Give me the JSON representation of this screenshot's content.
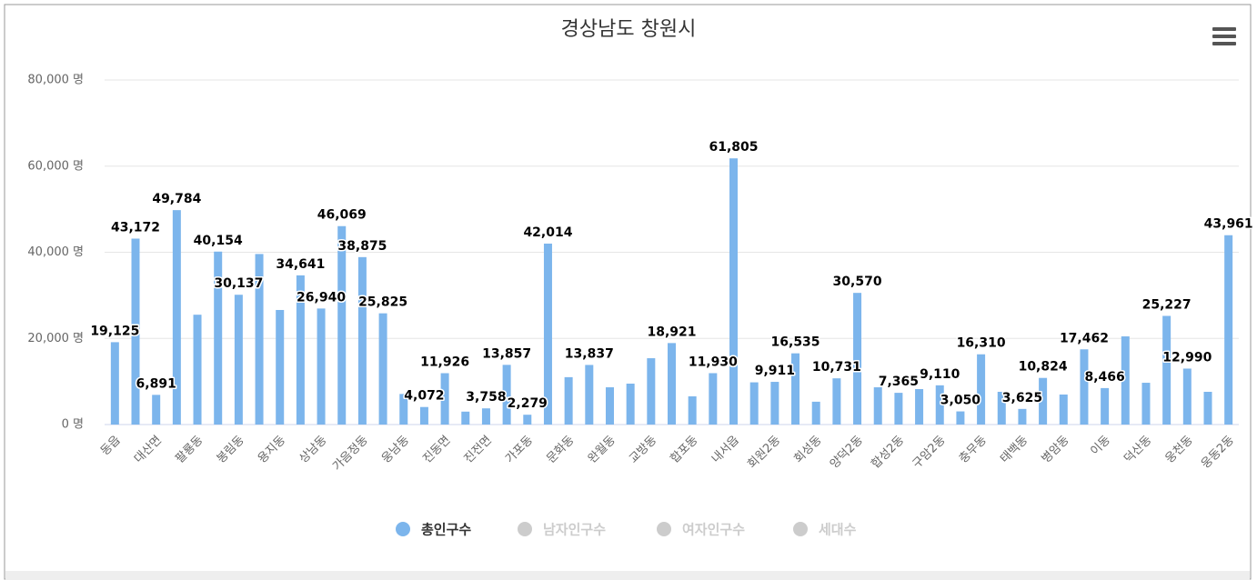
{
  "chart_data": {
    "type": "bar",
    "title": "경상남도 창원시",
    "categories": [
      "동읍",
      null,
      "대산면",
      null,
      "팔룡동",
      null,
      "봉림동",
      null,
      "용지동",
      null,
      "상남동",
      null,
      "가음정동",
      null,
      "웅남동",
      null,
      "진동면",
      null,
      "진전면",
      null,
      "가포동",
      null,
      "문화동",
      null,
      "완월동",
      null,
      "교방동",
      null,
      "합포동",
      null,
      "내서읍",
      null,
      "회원2동",
      null,
      "회성동",
      null,
      "양덕2동",
      null,
      "합성2동",
      null,
      "구암2동",
      null,
      "충무동",
      null,
      "태백동",
      null,
      "병암동",
      null,
      "이동",
      null,
      "덕산동",
      null,
      "웅천동",
      null,
      "웅동2동"
    ],
    "series": [
      {
        "name": "총인구수",
        "color": "#7cb5ec",
        "values": [
          19125,
          43172,
          6891,
          49784,
          25500,
          40154,
          30137,
          39600,
          26600,
          34641,
          26940,
          46069,
          38875,
          25825,
          7100,
          4072,
          11926,
          3000,
          3758,
          13857,
          2279,
          42014,
          11000,
          13837,
          8650,
          9500,
          15400,
          18921,
          6550,
          11930,
          61805,
          9800,
          9911,
          16535,
          5300,
          10731,
          30570,
          8650,
          7365,
          8230,
          9110,
          3050,
          16310,
          7600,
          3625,
          10824,
          6970,
          17462,
          8466,
          20470,
          9700,
          25227,
          12990,
          7600,
          43961
        ],
        "value_labels": [
          "19,125",
          "43,172",
          "6,891",
          "49,784",
          null,
          "40,154",
          "30,137",
          null,
          null,
          "34,641",
          "26,940",
          "46,069",
          "38,875",
          "25,825",
          null,
          "4,072",
          "11,926",
          null,
          "3,758",
          "13,857",
          "2,279",
          "42,014",
          null,
          "13,837",
          null,
          null,
          null,
          "18,921",
          null,
          "11,930",
          "61,805",
          null,
          "9,911",
          "16,535",
          null,
          "10,731",
          "30,570",
          null,
          "7,365",
          null,
          "9,110",
          "3,050",
          "16,310",
          null,
          "3,625",
          "10,824",
          null,
          "17,462",
          "8,466",
          null,
          null,
          "25,227",
          "12,990",
          null,
          "43,961"
        ]
      }
    ],
    "legend": [
      {
        "name": "총인구수",
        "color": "#7cb5ec",
        "visible": true
      },
      {
        "name": "남자인구수",
        "color": "#cccccc",
        "visible": false
      },
      {
        "name": "여자인구수",
        "color": "#cccccc",
        "visible": false
      },
      {
        "name": "세대수",
        "color": "#cccccc",
        "visible": false
      }
    ],
    "ylim": [
      0,
      80000
    ],
    "yticks": [
      {
        "value": 0,
        "label": "0 명"
      },
      {
        "value": 20000,
        "label": "20,000 명"
      },
      {
        "value": 40000,
        "label": "40,000 명"
      },
      {
        "value": 60000,
        "label": "60,000 명"
      },
      {
        "value": 80000,
        "label": "80,000 명"
      }
    ],
    "grid": true
  }
}
